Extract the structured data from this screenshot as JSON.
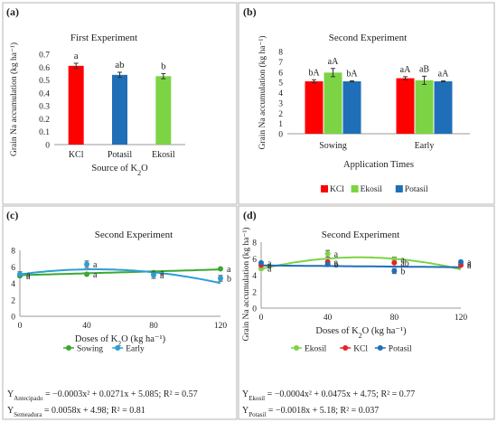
{
  "figure": {
    "panels": [
      {
        "label": "(a)",
        "title": "First Experiment"
      },
      {
        "label": "(b)",
        "title": "Second Experiment"
      },
      {
        "label": "(c)",
        "title": "Second Experiment"
      },
      {
        "label": "(d)",
        "title": "Second Experiment"
      }
    ]
  },
  "chart_data": [
    {
      "type": "bar",
      "panel": "(a)",
      "title": "First Experiment",
      "xlabel": "Source of K2O",
      "ylabel": "Grain Na accumulation (kg ha⁻¹)",
      "ylim": [
        0,
        0.7
      ],
      "yticks": [
        "0",
        "0.1",
        "0.2",
        "0.3",
        "0.4",
        "0.5",
        "0.6",
        "0.7"
      ],
      "categories": [
        "KCl",
        "Potasil",
        "Ekosil"
      ],
      "values": [
        0.61,
        0.54,
        0.53
      ],
      "errors": [
        0.02,
        0.02,
        0.02
      ],
      "letters": [
        "a",
        "ab",
        "b"
      ],
      "colors": [
        "#ff0000",
        "#1f6fb8",
        "#7cd444"
      ]
    },
    {
      "type": "bar",
      "panel": "(b)",
      "title": "Second Experiment",
      "xlabel": "Application Times",
      "ylabel": "Grain Na accumulation (kg ha⁻¹)",
      "ylim": [
        0,
        8
      ],
      "yticks": [
        "0",
        "1",
        "2",
        "3",
        "4",
        "5",
        "6",
        "7",
        "8"
      ],
      "categories": [
        "Sowing",
        "Early"
      ],
      "series": [
        {
          "name": "KCl",
          "color": "#ff0000",
          "values": [
            5.1,
            5.4
          ],
          "errors": [
            0.15,
            0.15
          ],
          "letters": [
            "bA",
            "aA"
          ]
        },
        {
          "name": "Ekosil",
          "color": "#7cd444",
          "values": [
            5.95,
            5.2
          ],
          "errors": [
            0.4,
            0.4
          ],
          "letters": [
            "aA",
            "aB"
          ]
        },
        {
          "name": "Potasil",
          "color": "#1f6fb8",
          "values": [
            5.1,
            5.1
          ],
          "errors": [
            0.05,
            0.05
          ],
          "letters": [
            "bA",
            "aA"
          ]
        }
      ],
      "legend": "bottom"
    },
    {
      "type": "scatter",
      "panel": "(c)",
      "title": "Second Experiment",
      "xlabel": "Doses of K2O (kg ha⁻¹)",
      "ylabel": "Grain Na accumulation (kg ha⁻¹)",
      "xlim": [
        0,
        120
      ],
      "ylim": [
        0,
        8
      ],
      "xticks": [
        "0",
        "40",
        "80",
        "120"
      ],
      "yticks": [
        "0",
        "2",
        "4",
        "6",
        "8"
      ],
      "series": [
        {
          "name": "Sowing",
          "color": "#3aa832",
          "x": [
            0,
            40,
            80,
            120
          ],
          "y": [
            4.9,
            5.1,
            5.3,
            5.75
          ],
          "letters": [
            "a",
            "a",
            "a",
            "a"
          ],
          "fit": {
            "type": "linear",
            "a": 0.0058,
            "b": 4.98
          }
        },
        {
          "name": "Early",
          "color": "#2a9fd6",
          "x": [
            0,
            40,
            80,
            120
          ],
          "y": [
            5.1,
            6.3,
            5.0,
            4.6
          ],
          "errors": [
            0.3,
            0.4,
            0.4,
            0.35
          ],
          "letters": [
            "a",
            "a",
            "a",
            "b"
          ],
          "fit": {
            "type": "quadratic",
            "a": -0.0003,
            "b": 0.0271,
            "c": 5.085
          }
        }
      ],
      "legend": "bottom",
      "equations": [
        {
          "prefix": "Y",
          "sub": "Antecipado",
          "text": " = −0.0003x² + 0.0271x + 5.085; R² = 0.57"
        },
        {
          "prefix": "Y",
          "sub": "Semeadura",
          "text": " = 0.0058x + 4.98; R² = 0.81"
        }
      ]
    },
    {
      "type": "scatter",
      "panel": "(d)",
      "title": "Second Experiment",
      "xlabel": "Doses of K2O (kg ha⁻¹)",
      "ylabel": "Grain Na accumulation (kg ha⁻¹)",
      "xlim": [
        0,
        120
      ],
      "ylim": [
        0,
        8
      ],
      "xticks": [
        "0",
        "40",
        "80",
        "120"
      ],
      "yticks": [
        "0",
        "2",
        "4",
        "6",
        "8"
      ],
      "series": [
        {
          "name": "Ekosil",
          "color": "#7cd444",
          "x": [
            0,
            40,
            80,
            120
          ],
          "y": [
            4.8,
            6.6,
            5.9,
            5.4
          ],
          "errors": [
            0.2,
            0.4,
            0.3,
            0.3
          ],
          "letters": [
            "a",
            "a",
            "a",
            "a"
          ],
          "fit": {
            "type": "quadratic",
            "a": -0.0004,
            "b": 0.0475,
            "c": 4.75
          }
        },
        {
          "name": "KCl",
          "color": "#e8222a",
          "x": [
            0,
            40,
            80,
            120
          ],
          "y": [
            5.2,
            5.6,
            5.5,
            5.2
          ],
          "errors": [
            0.1,
            0.1,
            0.1,
            0.1
          ],
          "letters": [
            "a",
            "a",
            "ab",
            "a"
          ]
        },
        {
          "name": "Potasil",
          "color": "#1f6fb8",
          "x": [
            0,
            40,
            80,
            120
          ],
          "y": [
            5.5,
            5.3,
            4.5,
            5.6
          ],
          "errors": [
            0.15,
            0.15,
            0.3,
            0.15
          ],
          "letters": [
            "a",
            "b",
            "b",
            "a"
          ],
          "fit": {
            "type": "linear",
            "a": -0.0018,
            "b": 5.18
          }
        }
      ],
      "legend": "bottom",
      "equations": [
        {
          "prefix": "Y",
          "sub": "Ekosil",
          "text": " = −0.0004x² + 0.0475x + 4.75; R² = 0.77"
        },
        {
          "prefix": "Y",
          "sub": "Potasil",
          "text": " = −0.0018x + 5.18; R² = 0.037"
        }
      ]
    }
  ]
}
